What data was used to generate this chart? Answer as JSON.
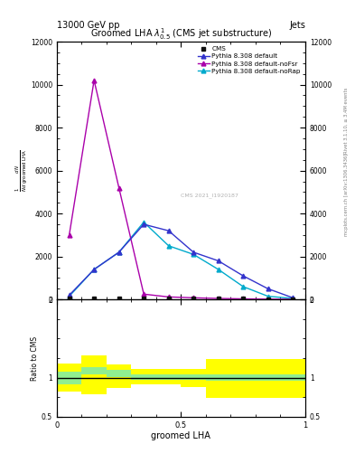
{
  "title": "Groomed LHA $\\lambda^{1}_{0.5}$ (CMS jet substructure)",
  "top_left_label": "13000 GeV pp",
  "top_right_label": "Jets",
  "right_label_top": "Rivet 3.1.10, ≥ 3.4M events",
  "right_label_bottom": "mcplots.cern.ch [arXiv:1306.3436]",
  "xlabel": "groomed LHA",
  "ylabel": "$\\frac{1}{N}\\frac{dN}{d\\,\\mathrm{groomed\\,LHA}}$",
  "ylim": [
    0,
    12000
  ],
  "xlim": [
    0,
    1
  ],
  "ratio_ylim": [
    0.5,
    2.0
  ],
  "watermark": "CMS 2021_I1920187",
  "cms_x": [
    0.05,
    0.15,
    0.25,
    0.35,
    0.45,
    0.55,
    0.65,
    0.75,
    0.85,
    0.95
  ],
  "cms_y": [
    50,
    60,
    60,
    55,
    55,
    50,
    40,
    35,
    20,
    15
  ],
  "pythia_default_x": [
    0.05,
    0.15,
    0.25,
    0.35,
    0.45,
    0.55,
    0.65,
    0.75,
    0.85,
    0.95
  ],
  "pythia_default_y": [
    200,
    1400,
    2200,
    3500,
    3200,
    2200,
    1800,
    1100,
    500,
    80
  ],
  "pythia_noFsr_x": [
    0.05,
    0.15,
    0.25,
    0.35,
    0.45,
    0.55,
    0.65,
    0.75,
    0.85,
    0.95
  ],
  "pythia_noFsr_y": [
    3000,
    10200,
    5200,
    250,
    120,
    80,
    50,
    30,
    20,
    10
  ],
  "pythia_noRap_x": [
    0.05,
    0.15,
    0.25,
    0.35,
    0.45,
    0.55,
    0.65,
    0.75,
    0.85,
    0.95
  ],
  "pythia_noRap_y": [
    150,
    1400,
    2200,
    3600,
    2500,
    2100,
    1400,
    600,
    150,
    50
  ],
  "color_default": "#3333cc",
  "color_noFsr": "#aa00aa",
  "color_noRap": "#00aacc",
  "color_cms": "#111111",
  "yticks": [
    0,
    2000,
    4000,
    6000,
    8000,
    10000,
    12000
  ],
  "ratio_bin_edges": [
    0.0,
    0.1,
    0.2,
    0.3,
    0.4,
    0.5,
    0.6,
    0.7,
    0.8,
    0.9,
    1.0
  ],
  "ratio_green_lo": [
    0.92,
    1.04,
    1.01,
    0.97,
    0.97,
    0.97,
    0.96,
    0.96,
    0.96,
    0.96
  ],
  "ratio_green_hi": [
    1.08,
    1.13,
    1.1,
    1.04,
    1.04,
    1.04,
    1.04,
    1.04,
    1.04,
    1.04
  ],
  "ratio_yellow_lo": [
    0.82,
    0.79,
    0.87,
    0.92,
    0.92,
    0.88,
    0.74,
    0.74,
    0.74,
    0.74
  ],
  "ratio_yellow_hi": [
    1.18,
    1.28,
    1.17,
    1.11,
    1.11,
    1.11,
    1.24,
    1.24,
    1.24,
    1.24
  ]
}
